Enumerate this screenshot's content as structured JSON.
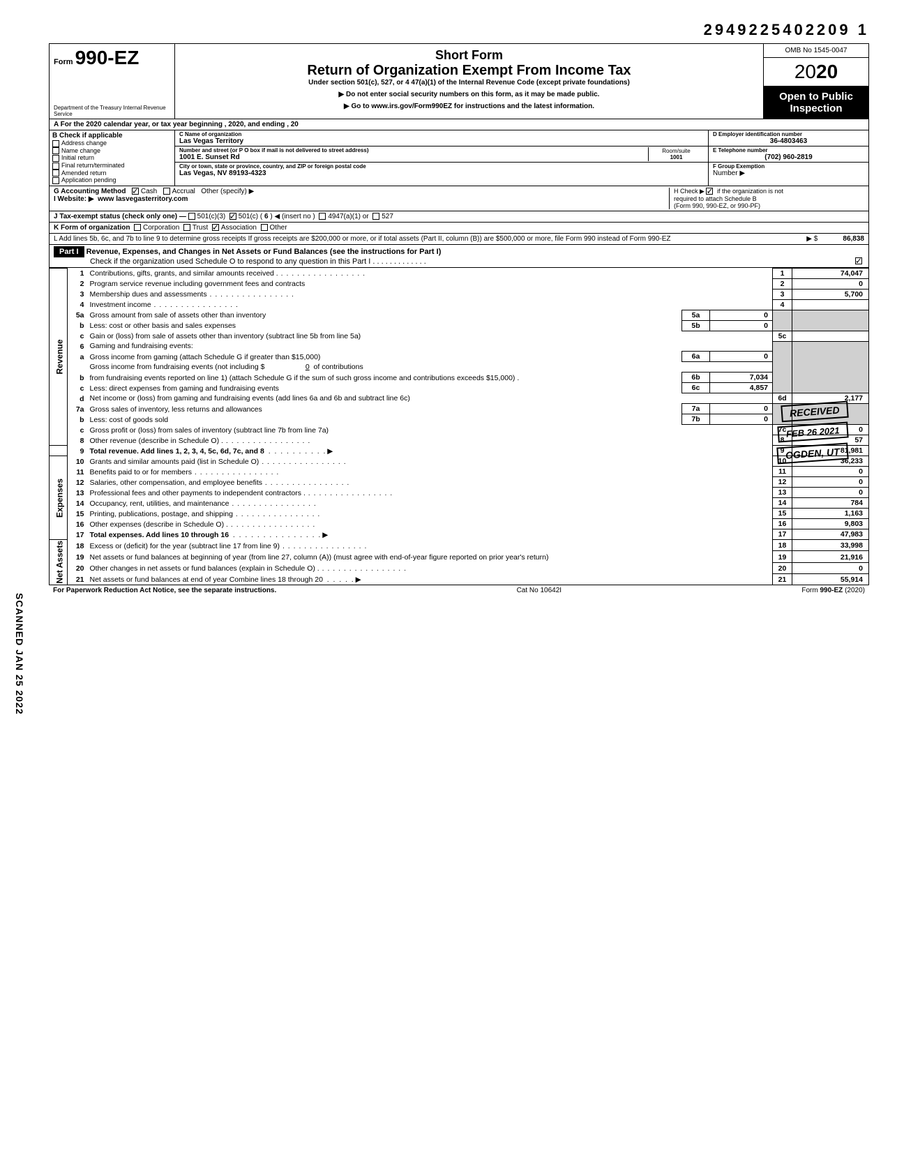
{
  "top_number": "2949225402209  1",
  "header": {
    "form_label": "Form",
    "form_no": "990-EZ",
    "dept": "Department of the Treasury\nInternal Revenue Service",
    "title1": "Short Form",
    "title2": "Return of Organization Exempt From Income Tax",
    "subtitle": "Under section 501(c), 527, or 4 47(a)(1) of the Internal Revenue Code (except private foundations)",
    "note1": "▶ Do not enter social security numbers on this form, as it may be made public.",
    "note2": "▶ Go to www.irs.gov/Form990EZ for instructions and the latest information.",
    "omb": "OMB No 1545-0047",
    "year_prefix": "2",
    "year_suffix": "20",
    "year_outline": "0",
    "open": "Open to Public Inspection"
  },
  "rowA": "A For the 2020 calendar year, or tax year beginning                                                                           , 2020, and ending                                          , 20",
  "B": {
    "label": "B Check if applicable",
    "items": [
      "Address change",
      "Name change",
      "Initial return",
      "Final return/terminated",
      "Amended return",
      "Application pending"
    ]
  },
  "C": {
    "name_lbl": "C Name of organization",
    "name": "Las Vegas Territory",
    "street_lbl": "Number and street (or P O  box if mail is not delivered to street address)",
    "street": "1001 E. Sunset Rd",
    "room_lbl": "Room/suite",
    "room": "1001",
    "city_lbl": "City or town, state or province, country, and ZIP or foreign postal code",
    "city": "Las Vegas, NV 89193-4323"
  },
  "D": {
    "lbl": "D Employer identification number",
    "val": "36-4803463"
  },
  "E": {
    "lbl": "E Telephone number",
    "val": "(702) 960-2819"
  },
  "F": {
    "lbl": "F Group Exemption",
    "lbl2": "Number ▶",
    "val": ""
  },
  "G": {
    "label": "G  Accounting Method",
    "cash": "Cash",
    "accrual": "Accrual",
    "other": "Other (specify) ▶"
  },
  "H": {
    "text1": "H  Check ▶",
    "text2": "if the organization is not",
    "text3": "required to attach Schedule B",
    "text4": "(Form 990, 990-EZ, or 990-PF)"
  },
  "I": {
    "label": "I  Website: ▶",
    "val": "www lasvegasterritory.com"
  },
  "J": {
    "label": "J  Tax-exempt status (check only one) —",
    "c3": "501(c)(3)",
    "c": "501(c) (",
    "cnum": "6",
    "cins": ") ◀ (insert no )",
    "a1": "4947(a)(1) or",
    "s527": "527"
  },
  "K": {
    "label": "K  Form of organization",
    "corp": "Corporation",
    "trust": "Trust",
    "assoc": "Association",
    "other": "Other"
  },
  "L": {
    "text": "L  Add lines 5b, 6c, and 7b to line 9 to determine gross receipts  If gross receipts are $200,000 or more, or if total assets (Part II, column (B)) are $500,000 or more, file Form 990 instead of Form 990-EZ",
    "arrow": "▶  $",
    "amt": "86,838"
  },
  "partI": {
    "tag": "Part I",
    "title": "Revenue, Expenses, and Changes in Net Assets or Fund Balances (see the instructions for Part I)",
    "check": "Check if the organization used Schedule O to respond to any question in this Part I  .   .   .   .   .   .   .   .   .   .   .   .   ."
  },
  "sides": {
    "rev": "Revenue",
    "exp": "Expenses",
    "net": "Net Assets"
  },
  "lines": {
    "1": {
      "n": "1",
      "d": "Contributions, gifts, grants, and similar amounts received .",
      "box": "1",
      "amt": "74,047"
    },
    "2": {
      "n": "2",
      "d": "Program service revenue including government fees and contracts",
      "box": "2",
      "amt": "0"
    },
    "3": {
      "n": "3",
      "d": "Membership dues and assessments",
      "box": "3",
      "amt": "5,700"
    },
    "4": {
      "n": "4",
      "d": "Investment income",
      "box": "4",
      "amt": ""
    },
    "5a": {
      "n": "5a",
      "d": "Gross amount from sale of assets other than inventory",
      "sb": "5a",
      "sa": "0"
    },
    "5b": {
      "n": "b",
      "d": "Less: cost or other basis and sales expenses",
      "sb": "5b",
      "sa": "0"
    },
    "5c": {
      "n": "c",
      "d": "Gain or (loss) from sale of assets other than inventory (subtract line 5b from line 5a)",
      "box": "5c",
      "amt": ""
    },
    "6": {
      "n": "6",
      "d": "Gaming and fundraising events:"
    },
    "6a": {
      "n": "a",
      "d": "Gross income from gaming (attach Schedule G if greater than $15,000)",
      "sb": "6a",
      "sa": "0"
    },
    "6b": {
      "n": "b",
      "d": "Gross income from fundraising events (not including  $",
      "d2": "of contributions from fundraising events reported on line 1) (attach Schedule G if the sum of such gross income and contributions exceeds $15,000) .",
      "sv": "0",
      "sb": "6b",
      "sa": "7,034"
    },
    "6c": {
      "n": "c",
      "d": "Less: direct expenses from gaming and fundraising events",
      "sb": "6c",
      "sa": "4,857"
    },
    "6d": {
      "n": "d",
      "d": "Net income or (loss) from gaming and fundraising events (add lines 6a and 6b and subtract line 6c)",
      "box": "6d",
      "amt": "2,177"
    },
    "7a": {
      "n": "7a",
      "d": "Gross sales of inventory, less returns and allowances",
      "sb": "7a",
      "sa": "0"
    },
    "7b": {
      "n": "b",
      "d": "Less: cost of goods sold",
      "sb": "7b",
      "sa": "0"
    },
    "7c": {
      "n": "c",
      "d": "Gross profit or (loss) from sales of inventory (subtract line 7b from line 7a)",
      "box": "7c",
      "amt": "0"
    },
    "8": {
      "n": "8",
      "d": "Other revenue (describe in Schedule O) .",
      "box": "8",
      "amt": "57"
    },
    "9": {
      "n": "9",
      "d": "Total revenue. Add lines 1, 2, 3, 4, 5c, 6d, 7c, and 8",
      "box": "9",
      "amt": "81,981",
      "bold": true
    },
    "10": {
      "n": "10",
      "d": "Grants and similar amounts paid (list in Schedule O)",
      "box": "10",
      "amt": "36,233"
    },
    "11": {
      "n": "11",
      "d": "Benefits paid to or for members",
      "box": "11",
      "amt": "0"
    },
    "12": {
      "n": "12",
      "d": "Salaries, other compensation, and employee benefits",
      "box": "12",
      "amt": "0"
    },
    "13": {
      "n": "13",
      "d": "Professional fees and other payments to independent contractors .",
      "box": "13",
      "amt": "0"
    },
    "14": {
      "n": "14",
      "d": "Occupancy, rent, utilities, and maintenance",
      "box": "14",
      "amt": "784"
    },
    "15": {
      "n": "15",
      "d": "Printing, publications, postage, and shipping",
      "box": "15",
      "amt": "1,163"
    },
    "16": {
      "n": "16",
      "d": "Other expenses (describe in Schedule O) .",
      "box": "16",
      "amt": "9,803"
    },
    "17": {
      "n": "17",
      "d": "Total expenses. Add lines 10 through 16",
      "box": "17",
      "amt": "47,983",
      "bold": true
    },
    "18": {
      "n": "18",
      "d": "Excess or (deficit) for the year (subtract line 17 from line 9)",
      "box": "18",
      "amt": "33,998"
    },
    "19": {
      "n": "19",
      "d": "Net assets or fund balances at beginning of year (from line 27, column (A)) (must agree with end-of-year figure reported on prior year's return)",
      "box": "19",
      "amt": "21,916"
    },
    "20": {
      "n": "20",
      "d": "Other changes in net assets or fund balances (explain in Schedule O) .",
      "box": "20",
      "amt": "0"
    },
    "21": {
      "n": "21",
      "d": "Net assets or fund balances at end of year  Combine lines 18 through 20",
      "box": "21",
      "amt": "55,914"
    }
  },
  "footer": {
    "left": "For Paperwork Reduction Act Notice, see the separate instructions.",
    "mid": "Cat  No  10642I",
    "right": "Form 990-EZ (2020)"
  },
  "stamps": {
    "s1": "RECEIVED",
    "s2": "FEB 26 2021",
    "s3": "OGDEN, UT"
  },
  "sidetext": "SCANNED JAN 25 2022",
  "colors": {
    "black": "#000000",
    "white": "#ffffff",
    "shade": "#d0d0d0"
  }
}
